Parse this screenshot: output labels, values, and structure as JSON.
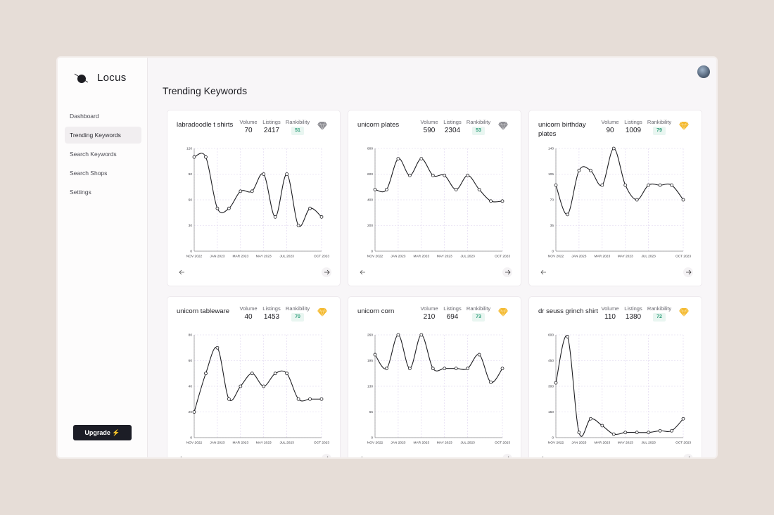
{
  "app": {
    "name": "Locus"
  },
  "nav": [
    "Dashboard",
    "Trending Keywords",
    "Search Keywords",
    "Search Shops",
    "Settings"
  ],
  "upgrade": "Upgrade",
  "page_title": "Trending Keywords",
  "stat_labels": [
    "Volume",
    "Listings",
    "Rankibility"
  ],
  "chart_data": [
    {
      "type": "line",
      "title": "labradoodle t shirts",
      "stats": [
        70,
        2417,
        51
      ],
      "gem_color": "#8e8e94",
      "categories": [
        "NOV 2022",
        null,
        "JAN 2023",
        null,
        "MAR 2023",
        null,
        "MAY 2023",
        null,
        "JUL 2023",
        null,
        null,
        "OCT 2023"
      ],
      "values": [
        110,
        110,
        50,
        50,
        70,
        70,
        90,
        40,
        90,
        30,
        50,
        40
      ],
      "color": "#1e1e22",
      "ylim": [
        0,
        120
      ],
      "yticks": [
        0,
        30,
        60,
        90,
        120
      ],
      "grid": true
    },
    {
      "type": "line",
      "title": "unicorn plates",
      "stats": [
        590,
        2304,
        53
      ],
      "gem_color": "#8e8e94",
      "categories": [
        "NOV 2022",
        null,
        "JAN 2023",
        null,
        "MAR 2023",
        null,
        "MAY 2023",
        null,
        "JUL 2023",
        null,
        null,
        "OCT 2023"
      ],
      "values": [
        480,
        480,
        720,
        590,
        720,
        590,
        590,
        480,
        590,
        480,
        390,
        390
      ],
      "color": "#1e1e22",
      "ylim": [
        0,
        800
      ],
      "yticks": [
        0,
        200,
        400,
        600,
        800
      ],
      "grid": true
    },
    {
      "type": "line",
      "title": "unicorn birthday plates",
      "stats": [
        90,
        1009,
        79
      ],
      "gem_color": "#f4b92c",
      "categories": [
        "NOV 2022",
        null,
        "JAN 2023",
        null,
        "MAR 2023",
        null,
        "MAY 2023",
        null,
        "JUL 2023",
        null,
        null,
        "OCT 2023"
      ],
      "values": [
        90,
        50,
        110,
        110,
        90,
        140,
        90,
        70,
        90,
        90,
        90,
        70
      ],
      "color": "#1e1e22",
      "ylim": [
        0,
        140
      ],
      "yticks": [
        0,
        35,
        70,
        105,
        140
      ],
      "grid": true
    },
    {
      "type": "line",
      "title": "unicorn tableware",
      "stats": [
        40,
        1453,
        70
      ],
      "gem_color": "#f4b92c",
      "categories": [
        "NOV 2022",
        null,
        "JAN 2023",
        null,
        "MAR 2023",
        null,
        "MAY 2023",
        null,
        "JUL 2023",
        null,
        null,
        "OCT 2023"
      ],
      "values": [
        20,
        50,
        70,
        30,
        40,
        50,
        40,
        50,
        50,
        30,
        30,
        30
      ],
      "color": "#1e1e22",
      "ylim": [
        0,
        80
      ],
      "yticks": [
        0,
        20,
        40,
        60,
        80
      ],
      "grid": true
    },
    {
      "type": "line",
      "title": "unicorn corn",
      "stats": [
        210,
        694,
        73
      ],
      "gem_color": "#f4b92c",
      "categories": [
        "NOV 2022",
        null,
        "JAN 2023",
        null,
        "MAR 2023",
        null,
        "MAY 2023",
        null,
        "JUL 2023",
        null,
        null,
        "OCT 2023"
      ],
      "values": [
        210,
        175,
        260,
        175,
        260,
        175,
        175,
        175,
        175,
        210,
        140,
        175
      ],
      "color": "#1e1e22",
      "ylim": [
        0,
        260
      ],
      "yticks": [
        0,
        65,
        130,
        195,
        260
      ],
      "grid": true
    },
    {
      "type": "line",
      "title": "dr seuss grinch shirt",
      "stats": [
        110,
        1380,
        72
      ],
      "gem_color": "#f4b92c",
      "categories": [
        "NOV 2022",
        null,
        "JAN 2023",
        null,
        "MAR 2023",
        null,
        "MAY 2023",
        null,
        "JUL 2023",
        null,
        null,
        "OCT 2023"
      ],
      "values": [
        320,
        590,
        30,
        110,
        70,
        20,
        30,
        30,
        30,
        40,
        40,
        110
      ],
      "color": "#1e1e22",
      "ylim": [
        0,
        600
      ],
      "yticks": [
        0,
        150,
        300,
        450,
        600
      ],
      "grid": true
    }
  ]
}
